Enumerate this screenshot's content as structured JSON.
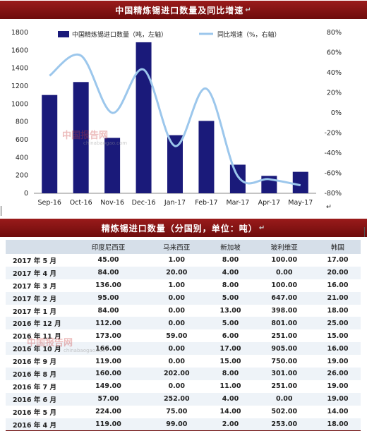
{
  "chart_title": "中国精炼锡进口数量及同比增速",
  "table_title": "精炼锡进口数量（分国别，单位：吨）",
  "watermark": {
    "text": "中国报告网",
    "sub": "chinabaogao.com"
  },
  "colors": {
    "bar": "#1a1a7a",
    "line": "#9cc7ec",
    "title_bg": "#7a1010",
    "header_bg": "#d6dfe9"
  },
  "chart_data": {
    "type": "bar+line",
    "categories": [
      "Sep-16",
      "Oct-16",
      "Nov-16",
      "Dec-16",
      "Jan-17",
      "Feb-17",
      "Mar-17",
      "Apr-17",
      "May-17"
    ],
    "series": [
      {
        "name": "中国精炼锡进口数量（吨，左轴）",
        "type": "bar",
        "axis": "left",
        "values": [
          1100,
          1245,
          620,
          1690,
          650,
          810,
          320,
          195,
          240
        ]
      },
      {
        "name": "同比增速（%，右轴）",
        "type": "line",
        "axis": "right",
        "values": [
          37,
          57,
          0,
          43,
          -33,
          24,
          -63,
          -66,
          -72
        ]
      }
    ],
    "y_left": {
      "min": 0,
      "max": 1800,
      "ticks": [
        "0",
        "200",
        "400",
        "600",
        "800",
        "1000",
        "1200",
        "1400",
        "1600",
        "1800"
      ]
    },
    "y_right": {
      "min": -80,
      "max": 80,
      "ticks": [
        "-80%",
        "-60%",
        "-40%",
        "-20%",
        "0%",
        "20%",
        "40%",
        "60%",
        "80%"
      ]
    },
    "legend_position": "top"
  },
  "table": {
    "columns": [
      "",
      "印度尼西亚",
      "马来西亚",
      "新加坡",
      "玻利维亚",
      "韩国"
    ],
    "rows": [
      [
        "2017 年 5 月",
        "45.00",
        "1.00",
        "8.00",
        "100.00",
        "17.00"
      ],
      [
        "2017 年 4 月",
        "84.00",
        "20.00",
        "4.00",
        "0.00",
        "20.00"
      ],
      [
        "2017 年 3 月",
        "136.00",
        "1.00",
        "8.00",
        "100.00",
        "16.00"
      ],
      [
        "2017 年 2 月",
        "95.00",
        "0.00",
        "5.00",
        "647.00",
        "21.00"
      ],
      [
        "2017 年 1 月",
        "84.00",
        "0.00",
        "13.00",
        "398.00",
        "18.00"
      ],
      [
        "2016 年 12 月",
        "112.00",
        "0.00",
        "5.00",
        "801.00",
        "25.00"
      ],
      [
        "2016 年 11 月",
        "173.00",
        "59.00",
        "6.00",
        "251.00",
        "15.00"
      ],
      [
        "2016 年 10 月",
        "166.00",
        "0.00",
        "17.00",
        "905.00",
        "16.00"
      ],
      [
        "2016 年 9 月",
        "119.00",
        "0.00",
        "15.00",
        "750.00",
        "19.00"
      ],
      [
        "2016 年 8 月",
        "160.00",
        "202.00",
        "8.00",
        "301.00",
        "26.00"
      ],
      [
        "2016 年 7 月",
        "149.00",
        "0.00",
        "11.00",
        "251.00",
        "19.00"
      ],
      [
        "2016 年 6 月",
        "57.00",
        "252.00",
        "4.00",
        "0.00",
        "19.00"
      ],
      [
        "2016 年 5 月",
        "224.00",
        "75.00",
        "14.00",
        "502.00",
        "14.00"
      ],
      [
        "2016 年 4 月",
        "119.00",
        "99.00",
        "2.00",
        "253.00",
        "18.00"
      ]
    ]
  }
}
